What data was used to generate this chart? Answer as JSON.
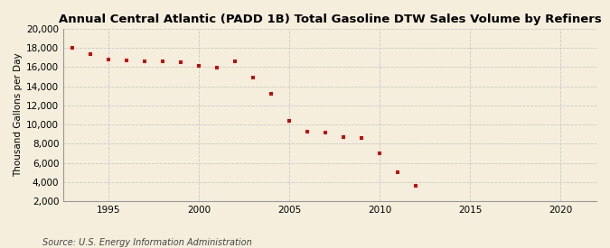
{
  "title": "Annual Central Atlantic (PADD 1B) Total Gasoline DTW Sales Volume by Refiners",
  "ylabel": "Thousand Gallons per Day",
  "source": "Source: U.S. Energy Information Administration",
  "years": [
    1993,
    1994,
    1995,
    1996,
    1997,
    1998,
    1999,
    2000,
    2001,
    2002,
    2003,
    2004,
    2005,
    2006,
    2007,
    2008,
    2009,
    2010,
    2011,
    2012
  ],
  "values": [
    18000,
    17400,
    16800,
    16700,
    16600,
    16600,
    16500,
    16100,
    15900,
    16600,
    14900,
    13200,
    10400,
    9300,
    9200,
    8700,
    8600,
    7000,
    5000,
    3600
  ],
  "marker_color": "#cc0000",
  "bg_color": "#f5eedc",
  "grid_color": "#c8c8c8",
  "ylim": [
    2000,
    20000
  ],
  "yticks": [
    2000,
    4000,
    6000,
    8000,
    10000,
    12000,
    14000,
    16000,
    18000,
    20000
  ],
  "xlim": [
    1992.5,
    2022
  ],
  "xticks": [
    1995,
    2000,
    2005,
    2010,
    2015,
    2020
  ],
  "title_fontsize": 9.5,
  "ylabel_fontsize": 7.5,
  "tick_fontsize": 7.5,
  "source_fontsize": 7
}
